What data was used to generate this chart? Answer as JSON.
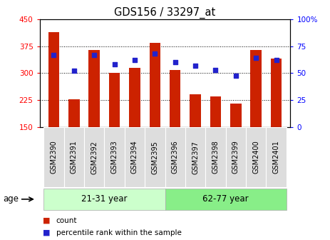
{
  "title": "GDS156 / 33297_at",
  "samples": [
    "GSM2390",
    "GSM2391",
    "GSM2392",
    "GSM2393",
    "GSM2394",
    "GSM2395",
    "GSM2396",
    "GSM2397",
    "GSM2398",
    "GSM2399",
    "GSM2400",
    "GSM2401"
  ],
  "counts": [
    415,
    228,
    365,
    300,
    315,
    385,
    308,
    242,
    235,
    215,
    365,
    340
  ],
  "percentiles": [
    67,
    52,
    67,
    58,
    62,
    68,
    60,
    57,
    53,
    48,
    64,
    62
  ],
  "ymin": 150,
  "ymax": 450,
  "y_ticks": [
    150,
    225,
    300,
    375,
    450
  ],
  "y2min": 0,
  "y2max": 100,
  "y2_ticks": [
    0,
    25,
    50,
    75,
    100
  ],
  "bar_color": "#cc2200",
  "dot_color": "#2222cc",
  "group1_label": "21-31 year",
  "group2_label": "62-77 year",
  "group1_color": "#ccffcc",
  "group2_color": "#88ee88",
  "age_label": "age",
  "legend1": "count",
  "legend2": "percentile rank within the sample",
  "bar_width": 0.55,
  "n_group1": 6,
  "n_group2": 6,
  "xlabel_fontsize": 7,
  "title_fontsize": 10.5
}
